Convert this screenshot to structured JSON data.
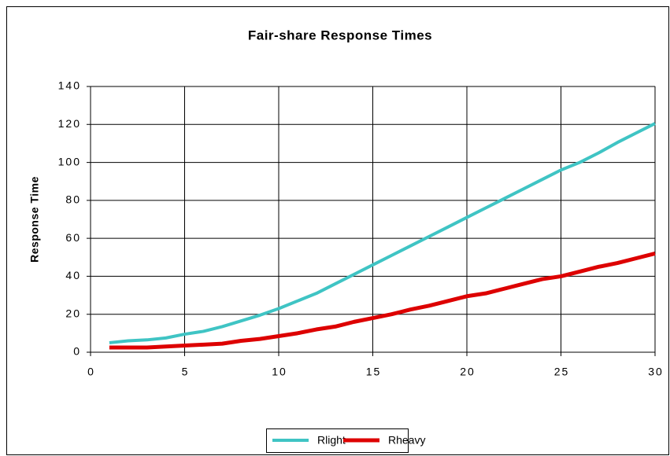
{
  "chart_data": {
    "type": "line",
    "title": "Fair-share   Response   Times",
    "y_label": "Response Time",
    "x": [
      1,
      2,
      3,
      4,
      5,
      6,
      7,
      8,
      9,
      10,
      11,
      12,
      13,
      14,
      15,
      16,
      17,
      18,
      19,
      20,
      21,
      22,
      23,
      24,
      25,
      26,
      27,
      28,
      29,
      30
    ],
    "series": [
      {
        "name": "Rlight",
        "color": "#3fc4c4",
        "values": [
          5,
          6,
          6.5,
          7.5,
          9.5,
          11,
          13.5,
          16.5,
          19.5,
          23,
          27,
          31,
          36,
          41,
          46,
          51,
          56,
          61,
          66,
          71,
          76,
          81,
          86,
          91,
          96,
          100,
          105,
          110.5,
          115.5,
          120.5
        ]
      },
      {
        "name": "Rheavy",
        "color": "#dd0000",
        "values": [
          2.5,
          2.5,
          2.5,
          3,
          3.5,
          4,
          4.5,
          6,
          7,
          8.5,
          10,
          12,
          13.5,
          16,
          18,
          20,
          22.5,
          24.5,
          27,
          29.5,
          31,
          33.5,
          36,
          38.5,
          40,
          42.5,
          45,
          47,
          49.5,
          52
        ]
      }
    ],
    "xlim": [
      0,
      30
    ],
    "xticks": [
      0,
      5,
      10,
      15,
      20,
      25,
      30
    ],
    "ylim": [
      0,
      140
    ],
    "yticks": [
      0,
      20,
      40,
      60,
      80,
      100,
      120,
      140
    ],
    "grid": true,
    "legend": "bottom"
  }
}
